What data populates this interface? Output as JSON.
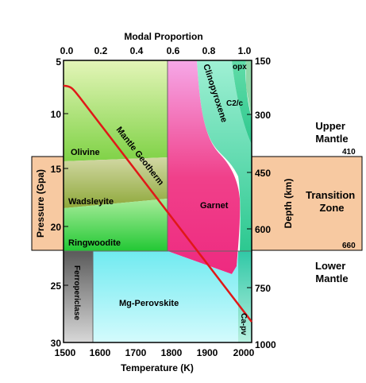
{
  "top_axis": {
    "label": "Modal Proportion",
    "ticks": [
      "0.0",
      "0.2",
      "0.4",
      "0.6",
      "0.8",
      "1.0"
    ]
  },
  "bottom_axis": {
    "label": "Temperature (K)",
    "ticks": [
      "1500",
      "1600",
      "1700",
      "1800",
      "1900",
      "2000"
    ]
  },
  "left_axis": {
    "label": "Pressure (Gpa)",
    "ticks": [
      "5",
      "10",
      "15",
      "20",
      "25",
      "30"
    ]
  },
  "right_axis": {
    "label": "Depth (km)",
    "ticks": [
      "150",
      "300",
      "450",
      "600",
      "750",
      "1000"
    ]
  },
  "phases": {
    "olivine": "Olivine",
    "wadsleyite": "Wadsleyite",
    "ringwoodite": "Ringwoodite",
    "garnet": "Garnet",
    "clinopyroxene": "Clinopyroxene",
    "c2c": "C2/c",
    "opx": "opx",
    "ferropericlase": "Ferropericlase",
    "mg_perovskite": "Mg-Perovskite",
    "ca_pv": "Ca-pv"
  },
  "geotherm_label": "Mantle Geotherm",
  "zones": {
    "upper_mantle": "Upper Mantle",
    "transition_zone": "Transition Zone",
    "lower_mantle": "Lower Mantle",
    "boundary_410": "410",
    "boundary_660": "660"
  },
  "colors": {
    "olivine": "#b9e87a",
    "wadsleyite": "#a9bd5e",
    "ringwoodite": "#4fd86a",
    "garnet": "#ef3a8a",
    "clinopyroxene": "#3fd0a0",
    "opx": "#8fd8a8",
    "ferropericlase": "#7a7a7a",
    "mg_perovskite": "#8cf0f4",
    "ca_pv": "#40c8b0",
    "geotherm": "#e01818",
    "zone_band": "#f7c9a1"
  }
}
